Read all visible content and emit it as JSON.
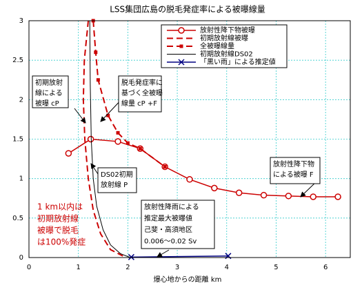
{
  "chart_data": {
    "type": "line",
    "title": "LSS集団広島の脱毛発症率による被曝線量",
    "x_label": "爆心地からの距離 km",
    "xlim": [
      0,
      6.5
    ],
    "xticks": [
      0,
      1,
      2,
      3,
      4,
      5,
      6
    ],
    "ylim": [
      0,
      3
    ],
    "yticks": [
      0,
      0.5,
      1,
      1.5,
      2,
      2.5,
      3
    ],
    "grid": true,
    "series": [
      {
        "name": "放射性降下物被曝",
        "color": "#cc0000",
        "line_style": "solid",
        "marker": "circle",
        "x": [
          0.8,
          1.25,
          1.8,
          2.25,
          2.75,
          3.25,
          3.75,
          4.25,
          4.75,
          5.25,
          5.75,
          6.25
        ],
        "values": [
          1.32,
          1.5,
          1.47,
          1.38,
          1.15,
          0.99,
          0.88,
          0.82,
          0.79,
          0.78,
          0.77,
          0.77
        ]
      },
      {
        "name": "初期放射線被曝",
        "color": "#cc0000",
        "line_style": "dashed",
        "marker": "none",
        "x": [
          1.2,
          1.12,
          1.1,
          1.13,
          1.2,
          1.3,
          1.45,
          1.65,
          1.9
        ],
        "values": [
          3,
          2.5,
          2.0,
          1.5,
          1.0,
          0.6,
          0.3,
          0.1,
          0.02
        ]
      },
      {
        "name": "全被曝線量",
        "color": "#cc0000",
        "line_style": "dashed",
        "marker": "square",
        "x": [
          1.3,
          1.35,
          1.4,
          1.6,
          1.8,
          2.0,
          2.25,
          2.75
        ],
        "values": [
          3,
          2.6,
          2.25,
          1.8,
          1.58,
          1.45,
          1.38,
          1.15
        ]
      },
      {
        "name": "初期放射線DS02",
        "color": "#000000",
        "line_style": "solid",
        "marker": "none",
        "x": [
          1.23,
          1.24,
          1.26,
          1.3,
          1.37,
          1.5,
          1.65,
          1.85,
          2.05
        ],
        "values": [
          3,
          2.2,
          1.5,
          1.0,
          0.65,
          0.35,
          0.16,
          0.05,
          0
        ]
      },
      {
        "name": "「黒い雨」による推定値",
        "color": "#000080",
        "line_style": "solid",
        "marker": "x",
        "x": [
          2.07,
          4.03
        ],
        "values": [
          0.006,
          0.02
        ]
      }
    ],
    "annotations": [
      {
        "lines": [
          "初期放射",
          "線による",
          "被曝 cP"
        ],
        "color": "#000000"
      },
      {
        "lines": [
          "脱毛発症率に",
          "基づく全被曝",
          "線量 cP +F"
        ],
        "color": "#000000"
      },
      {
        "lines": [
          "DS02初期",
          "放射線 P"
        ],
        "color": "#000000"
      },
      {
        "lines": [
          "放射性降下物",
          "による被曝 F"
        ],
        "color": "#000000"
      },
      {
        "lines": [
          "放射性降雨による",
          "推定最大被曝値",
          "己斐・高須地区",
          "0.006～0.02 Sv"
        ],
        "color": "#000000"
      },
      {
        "lines": [
          "1 km以内は",
          "初期放射線",
          "被曝で脱毛",
          "は100%発症"
        ],
        "color": "#cc0000"
      }
    ]
  }
}
